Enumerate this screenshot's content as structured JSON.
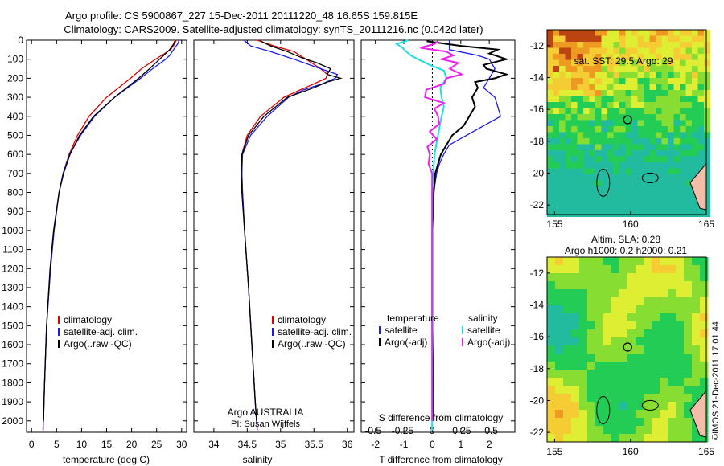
{
  "title": {
    "line1": "Argo profile: CS 5900867_227 15-Dec-2011 20111220_48 16.65S 159.815E",
    "line2": "Climatology: CARS2009. Satellite-adjusted climatology: synTS_20111216.nc (0.042d later)"
  },
  "colors": {
    "clim": "#dd0000",
    "sat": "#1a1aee",
    "argo": "#000000",
    "sat_s": "#22dddd",
    "argo_s": "#ee22ee"
  },
  "chart_data": [
    {
      "type": "line",
      "name": "temperature-profile",
      "xlabel": "temperature (deg C)",
      "xlim": [
        -1,
        31
      ],
      "xticks": [
        0,
        5,
        10,
        15,
        20,
        25,
        30
      ],
      "ylim": [
        0,
        2060
      ],
      "yticks": [
        0,
        100,
        200,
        300,
        400,
        500,
        600,
        700,
        800,
        900,
        1000,
        1100,
        1200,
        1300,
        1400,
        1500,
        1600,
        1700,
        1800,
        1900,
        2000
      ],
      "legend": [
        "climatology",
        "satellite-adj. clim.",
        "Argo(..raw -QC)"
      ],
      "series": [
        {
          "name": "climatology",
          "depth": [
            0,
            20,
            50,
            80,
            100,
            150,
            200,
            250,
            300,
            400,
            500,
            600,
            700,
            800,
            1000,
            1200,
            1500,
            1800,
            2050
          ],
          "values": [
            28.9,
            28.6,
            27.8,
            26.0,
            24.8,
            22.0,
            19.8,
            17.4,
            15.0,
            11.5,
            9.2,
            7.5,
            6.3,
            5.5,
            4.5,
            3.8,
            3.0,
            2.6,
            2.3
          ]
        },
        {
          "name": "satellite-adj. clim.",
          "depth": [
            0,
            20,
            50,
            80,
            100,
            150,
            200,
            250,
            300,
            400,
            500,
            600,
            700,
            800,
            1000,
            1200,
            1500,
            1800,
            2050
          ],
          "values": [
            29.5,
            29.2,
            28.4,
            27.6,
            26.8,
            24.2,
            21.8,
            19.2,
            16.6,
            12.6,
            9.8,
            7.6,
            6.3,
            5.5,
            4.5,
            3.8,
            3.0,
            2.6,
            2.3
          ]
        },
        {
          "name": "Argo",
          "depth": [
            5,
            20,
            50,
            80,
            100,
            150,
            200,
            250,
            300,
            400,
            450,
            500,
            600,
            700,
            800,
            1000,
            1200,
            1500,
            1800,
            2000
          ],
          "values": [
            28.6,
            28.4,
            27.6,
            26.4,
            25.6,
            23.6,
            21.4,
            19.0,
            16.6,
            12.4,
            11.0,
            9.6,
            7.7,
            6.4,
            5.5,
            4.4,
            3.7,
            3.0,
            2.6,
            2.4
          ]
        }
      ]
    },
    {
      "type": "line",
      "name": "salinity-profile",
      "xlabel": "salinity",
      "xlim": [
        33.7,
        36.1
      ],
      "xticks": [
        34,
        34.5,
        35,
        35.5,
        36
      ],
      "xticklabels": [
        "34",
        "34.5",
        "35",
        "35.5",
        "36"
      ],
      "ylim": [
        0,
        2060
      ],
      "legend": [
        "climatology",
        "satellite-adj. clim.",
        "Argo(..raw -QC)"
      ],
      "annotation": [
        "Argo AUSTRALIA",
        "PI: Susan Wijffels"
      ],
      "series": [
        {
          "name": "climatology",
          "depth": [
            0,
            30,
            60,
            100,
            150,
            180,
            200,
            230,
            260,
            300,
            400,
            500,
            600,
            700,
            800,
            1000,
            1300,
            1600,
            1900,
            2050
          ],
          "values": [
            34.65,
            34.9,
            35.2,
            35.38,
            35.6,
            35.7,
            35.68,
            35.5,
            35.3,
            35.05,
            34.7,
            34.5,
            34.42,
            34.42,
            34.43,
            34.46,
            34.52,
            34.57,
            34.62,
            34.65
          ]
        },
        {
          "name": "satellite-adj. clim.",
          "depth": [
            0,
            30,
            60,
            100,
            150,
            180,
            200,
            230,
            260,
            300,
            400,
            500,
            600,
            700,
            800,
            1000,
            1300,
            1600,
            1900,
            2050
          ],
          "values": [
            34.45,
            34.55,
            34.85,
            35.2,
            35.6,
            35.85,
            35.82,
            35.62,
            35.35,
            35.12,
            34.8,
            34.55,
            34.43,
            34.42,
            34.43,
            34.46,
            34.52,
            34.57,
            34.62,
            34.65
          ]
        },
        {
          "name": "Argo",
          "depth": [
            5,
            30,
            60,
            90,
            120,
            150,
            180,
            200,
            220,
            250,
            300,
            400,
            500,
            600,
            700,
            800,
            1000,
            1300,
            1600,
            1900,
            2000
          ],
          "values": [
            34.7,
            34.85,
            35.1,
            35.3,
            35.55,
            35.75,
            35.7,
            35.9,
            35.7,
            35.5,
            35.1,
            34.75,
            34.52,
            34.42,
            34.41,
            34.42,
            34.46,
            34.52,
            34.57,
            34.62,
            34.64
          ]
        }
      ]
    },
    {
      "type": "line",
      "name": "difference-profile",
      "top_axis": {
        "label": "S difference from climatology",
        "xlim": [
          -0.6,
          0.7
        ],
        "ticks": [
          -0.5,
          -0.25,
          0,
          0.25,
          0.5
        ],
        "ticklabels": [
          "-0.5",
          "-0.25",
          "0",
          "0.25",
          "0.5"
        ]
      },
      "bottom_axis": {
        "label": "T difference from climatology",
        "xlim": [
          -2.5,
          2.9
        ],
        "ticks": [
          -2,
          -1,
          0,
          1,
          2
        ],
        "ticklabels": [
          "-2",
          "-1",
          "0",
          "1",
          "2"
        ]
      },
      "ylim": [
        0,
        2060
      ],
      "legend_temperature": {
        "title": "temperature",
        "items": [
          "satellite",
          "Argo(-adj)"
        ]
      },
      "legend_salinity": {
        "title": "salinity",
        "items": [
          "satellite",
          "Argo(-adj)"
        ]
      },
      "series": [
        {
          "name": "T satellite",
          "axis": "T",
          "depth": [
            0,
            20,
            50,
            80,
            100,
            150,
            200,
            250,
            300,
            350,
            400,
            450,
            500,
            550,
            600,
            650,
            700,
            800,
            1000,
            1500,
            2050
          ],
          "values": [
            0.6,
            0.6,
            0.6,
            1.6,
            2.0,
            2.2,
            2.0,
            1.8,
            2.2,
            2.3,
            2.4,
            1.8,
            1.2,
            0.6,
            0.4,
            0.25,
            0.15,
            0.05,
            0,
            0,
            0
          ]
        },
        {
          "name": "T Argo",
          "axis": "T",
          "depth": [
            5,
            30,
            50,
            70,
            100,
            130,
            150,
            180,
            200,
            220,
            250,
            300,
            350,
            400,
            450,
            500,
            550,
            600,
            700,
            800,
            1000,
            1500,
            2000
          ],
          "values": [
            -0.2,
            1.0,
            2.3,
            2.0,
            2.6,
            1.8,
            1.9,
            2.6,
            2.2,
            1.5,
            1.6,
            1.4,
            1.5,
            1.3,
            1.1,
            0.7,
            0.5,
            0.3,
            0.1,
            0.05,
            0,
            0,
            0.05
          ]
        },
        {
          "name": "S satellite",
          "axis": "S",
          "depth": [
            0,
            20,
            40,
            60,
            80,
            100,
            130,
            160,
            200,
            250,
            300,
            350,
            400,
            500,
            600,
            800,
            1000,
            1500,
            2050
          ],
          "values": [
            -0.2,
            -0.3,
            -0.25,
            -0.22,
            -0.18,
            -0.12,
            -0.02,
            0.1,
            0.12,
            0.07,
            0.08,
            0.1,
            0.08,
            0.05,
            0.02,
            0,
            0,
            0,
            0
          ]
        },
        {
          "name": "S Argo",
          "axis": "S",
          "depth": [
            5,
            20,
            40,
            60,
            80,
            100,
            120,
            150,
            180,
            200,
            230,
            260,
            300,
            330,
            360,
            400,
            440,
            480,
            520,
            560,
            600,
            650,
            700,
            800,
            1000,
            1500,
            2000
          ],
          "values": [
            0.05,
            0.02,
            -0.1,
            0.12,
            0.18,
            0.08,
            0.22,
            0.15,
            0.25,
            0.12,
            0.1,
            -0.05,
            -0.06,
            0.1,
            0.02,
            0.05,
            0.06,
            -0.02,
            0.04,
            -0.04,
            -0.02,
            -0.03,
            0,
            0,
            0,
            0,
            0
          ]
        }
      ]
    },
    {
      "type": "heatmap",
      "name": "sst-map",
      "title": "sat. SST: 29.5  Argo: 29",
      "xlim": [
        154.5,
        165
      ],
      "ylim": [
        -22.6,
        -11
      ],
      "xticks": [
        155,
        160,
        165
      ],
      "xticklabels": [
        "155",
        "160",
        "165"
      ],
      "yticks": [
        -12,
        -14,
        -16,
        -18,
        -20,
        -22
      ],
      "yticklabels": [
        "-12",
        "-14",
        "-16",
        "-18",
        "-20",
        "-22"
      ],
      "marker": {
        "lon": 159.815,
        "lat": -16.65
      }
    },
    {
      "type": "heatmap",
      "name": "sla-map",
      "title_line1": "Altim. SLA: 0.28",
      "title_line2": "Argo h1000: 0.2  h2000: 0.21",
      "xlim": [
        154.5,
        165
      ],
      "ylim": [
        -22.6,
        -11
      ],
      "xticks": [
        155,
        160,
        165
      ],
      "xticklabels": [
        "155",
        "160",
        "165"
      ],
      "yticks": [
        -12,
        -14,
        -16,
        -18,
        -20,
        -22
      ],
      "yticklabels": [
        "-12",
        "-14",
        "-16",
        "-18",
        "-20",
        "-22"
      ],
      "marker": {
        "lon": 159.815,
        "lat": -16.65
      }
    }
  ],
  "credit": "©IMOS 21-Dec-2011 17:01:44"
}
